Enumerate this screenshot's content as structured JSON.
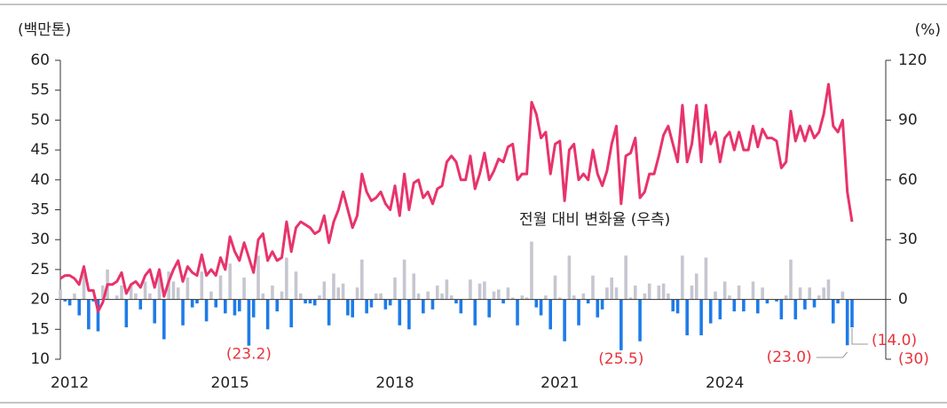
{
  "chart_data": {
    "type": "bar-line",
    "y_label": "(백만톤)",
    "y2_label": "(%)",
    "categories": [
      null,
      null,
      "2012",
      null,
      null,
      null,
      null,
      null,
      null,
      null,
      null,
      null,
      null,
      null,
      null,
      null,
      null,
      null,
      null,
      null,
      null,
      null,
      null,
      null,
      null,
      null,
      null,
      null,
      null,
      null,
      null,
      null,
      null,
      null,
      null,
      null,
      "2015",
      null,
      null,
      null,
      null,
      null,
      null,
      null,
      null,
      null,
      null,
      null,
      null,
      null,
      null,
      null,
      null,
      null,
      null,
      null,
      null,
      null,
      null,
      null,
      null,
      null,
      null,
      null,
      null,
      null,
      null,
      null,
      null,
      null,
      null,
      "2018",
      null,
      null,
      null,
      null,
      null,
      null,
      null,
      null,
      null,
      null,
      null,
      null,
      null,
      null,
      null,
      null,
      null,
      null,
      null,
      null,
      null,
      null,
      null,
      null,
      null,
      null,
      null,
      null,
      null,
      null,
      null,
      null,
      null,
      null,
      "2021",
      null,
      null,
      null,
      null,
      null,
      null,
      null,
      null,
      null,
      null,
      null,
      null,
      null,
      null,
      null,
      null,
      null,
      null,
      null,
      null,
      null,
      null,
      null,
      null,
      null,
      null,
      null,
      null,
      null,
      null,
      null,
      null,
      null,
      null,
      "2024",
      null,
      null,
      null,
      null,
      null,
      null,
      null,
      null,
      null,
      null,
      null,
      null,
      null,
      null,
      null,
      null,
      null,
      null,
      null,
      null,
      null,
      null,
      null,
      null,
      null,
      null,
      null
    ],
    "ylim": [
      10,
      60
    ],
    "yticks": [
      10,
      15,
      20,
      25,
      30,
      35,
      40,
      45,
      50,
      55,
      60
    ],
    "y2lim": [
      -30,
      120
    ],
    "y2ticks": [
      120,
      90,
      60,
      30,
      0,
      {
        "value": -30,
        "label": "(30)"
      }
    ],
    "series": [
      {
        "kind": "line",
        "color": "#e8336b",
        "values": [
          23.5,
          24,
          24,
          23.5,
          22.5,
          25.5,
          21.5,
          21.5,
          18,
          19.5,
          22.5,
          22.5,
          23,
          24.5,
          21,
          22.5,
          23,
          22,
          24,
          25,
          22,
          25,
          20.5,
          23,
          25,
          26.5,
          23,
          25.5,
          24.5,
          24,
          27.5,
          24,
          25,
          24,
          27,
          25,
          30.5,
          28,
          26.5,
          29.5,
          27,
          24.5,
          30,
          31,
          26.5,
          28,
          26.5,
          27,
          33,
          28,
          32,
          33,
          32.5,
          32,
          31,
          31.5,
          34,
          29.5,
          33,
          35,
          38,
          35,
          32,
          34,
          41,
          38,
          36.5,
          37,
          38,
          36,
          35,
          39,
          34,
          41,
          35,
          39.5,
          40,
          37,
          38,
          36,
          38.5,
          39,
          43,
          44,
          43,
          40,
          40,
          44,
          38.5,
          41,
          44.5,
          40,
          41.5,
          43.5,
          43,
          45.5,
          46,
          40,
          41,
          41,
          53,
          51,
          47,
          48,
          41,
          46,
          46.5,
          36.5,
          45,
          46,
          40,
          41,
          40,
          45,
          41,
          39,
          41.5,
          46,
          49,
          36,
          44,
          44.5,
          47,
          37,
          38,
          41,
          41,
          44,
          47.5,
          49,
          46,
          43,
          52.5,
          43,
          46,
          52.5,
          43,
          52.5,
          46,
          48,
          43,
          47,
          48,
          45,
          48,
          45,
          45,
          49,
          45.5,
          48.5,
          47,
          47,
          46.5,
          42,
          43,
          51.5,
          46.5,
          49,
          46.5,
          49,
          47,
          48,
          51,
          56,
          49,
          48,
          50,
          38,
          33
        ]
      },
      {
        "kind": "bar",
        "axis": "y2",
        "name": "전월 대비 변화율 (우측)",
        "color": "#1e7be8",
        "color_positive": "#c6c6d0",
        "label_color": "#e8333b",
        "values": [
          5,
          -1,
          -3,
          3,
          -8,
          13,
          -15,
          -1,
          -16,
          7,
          15,
          0,
          2,
          7,
          -14,
          7,
          3,
          -5,
          9,
          3,
          -12,
          13,
          -20,
          14,
          9,
          6,
          -13,
          11,
          -4,
          -2,
          14,
          -11,
          4,
          -4,
          12,
          -7,
          18,
          -8,
          -6,
          11,
          -23.2,
          -9,
          22,
          3,
          -15,
          7,
          -6,
          4,
          21,
          -14,
          14,
          3,
          -2,
          -2,
          -3,
          2,
          9,
          -13,
          13,
          6,
          8,
          -8,
          -9,
          6,
          20,
          -7,
          -4,
          3,
          3,
          -5,
          -3,
          11,
          -13,
          20,
          -15,
          13,
          3,
          -7,
          4,
          -5,
          7,
          3,
          10,
          2,
          -2,
          -7,
          0,
          10,
          -13,
          8,
          9,
          -9,
          4,
          5,
          -2,
          6,
          1,
          -13,
          2,
          1,
          29,
          -4,
          -8,
          2,
          -15,
          12,
          1,
          -21,
          22,
          2,
          -13,
          3,
          -2,
          12,
          -9,
          -5,
          6,
          11,
          6,
          -25.5,
          22,
          1,
          7,
          -21,
          3,
          8,
          0,
          7,
          8,
          3,
          -6,
          -7,
          22,
          -18,
          7,
          13,
          -18,
          21,
          -12,
          4,
          -10,
          9,
          2,
          -6,
          7,
          -6,
          0,
          9,
          -7,
          6,
          -2,
          0,
          -1,
          -10,
          2,
          20,
          -10,
          6,
          -5,
          6,
          -4,
          2,
          6,
          10,
          -12,
          -2,
          4,
          -23,
          -14
        ],
        "value_labels": [
          null,
          null,
          null,
          null,
          null,
          null,
          null,
          null,
          null,
          null,
          null,
          null,
          null,
          null,
          null,
          null,
          null,
          null,
          null,
          null,
          null,
          null,
          null,
          null,
          null,
          null,
          null,
          null,
          null,
          null,
          null,
          null,
          null,
          null,
          null,
          null,
          null,
          null,
          null,
          null,
          "(23.2)",
          null,
          null,
          null,
          null,
          null,
          null,
          null,
          null,
          null,
          null,
          null,
          null,
          null,
          null,
          null,
          null,
          null,
          null,
          null,
          null,
          null,
          null,
          null,
          null,
          null,
          null,
          null,
          null,
          null,
          null,
          null,
          null,
          null,
          null,
          null,
          null,
          null,
          null,
          null,
          null,
          null,
          null,
          null,
          null,
          null,
          null,
          null,
          null,
          null,
          null,
          null,
          null,
          null,
          null,
          null,
          null,
          null,
          null,
          null,
          null,
          null,
          null,
          null,
          null,
          null,
          null,
          null,
          null,
          null,
          null,
          null,
          null,
          null,
          null,
          null,
          null,
          null,
          null,
          "(25.5)",
          null,
          null,
          null,
          null,
          null,
          null,
          null,
          null,
          null,
          null,
          null,
          null,
          null,
          null,
          null,
          null,
          null,
          null,
          null,
          null,
          null,
          null,
          null,
          null,
          null,
          null,
          null,
          null,
          null,
          null,
          null,
          null,
          null,
          null,
          null,
          null,
          null,
          null,
          null,
          null,
          null,
          null,
          null,
          null,
          null,
          null,
          null,
          "(23.0)",
          "(14.0)"
        ]
      }
    ]
  }
}
